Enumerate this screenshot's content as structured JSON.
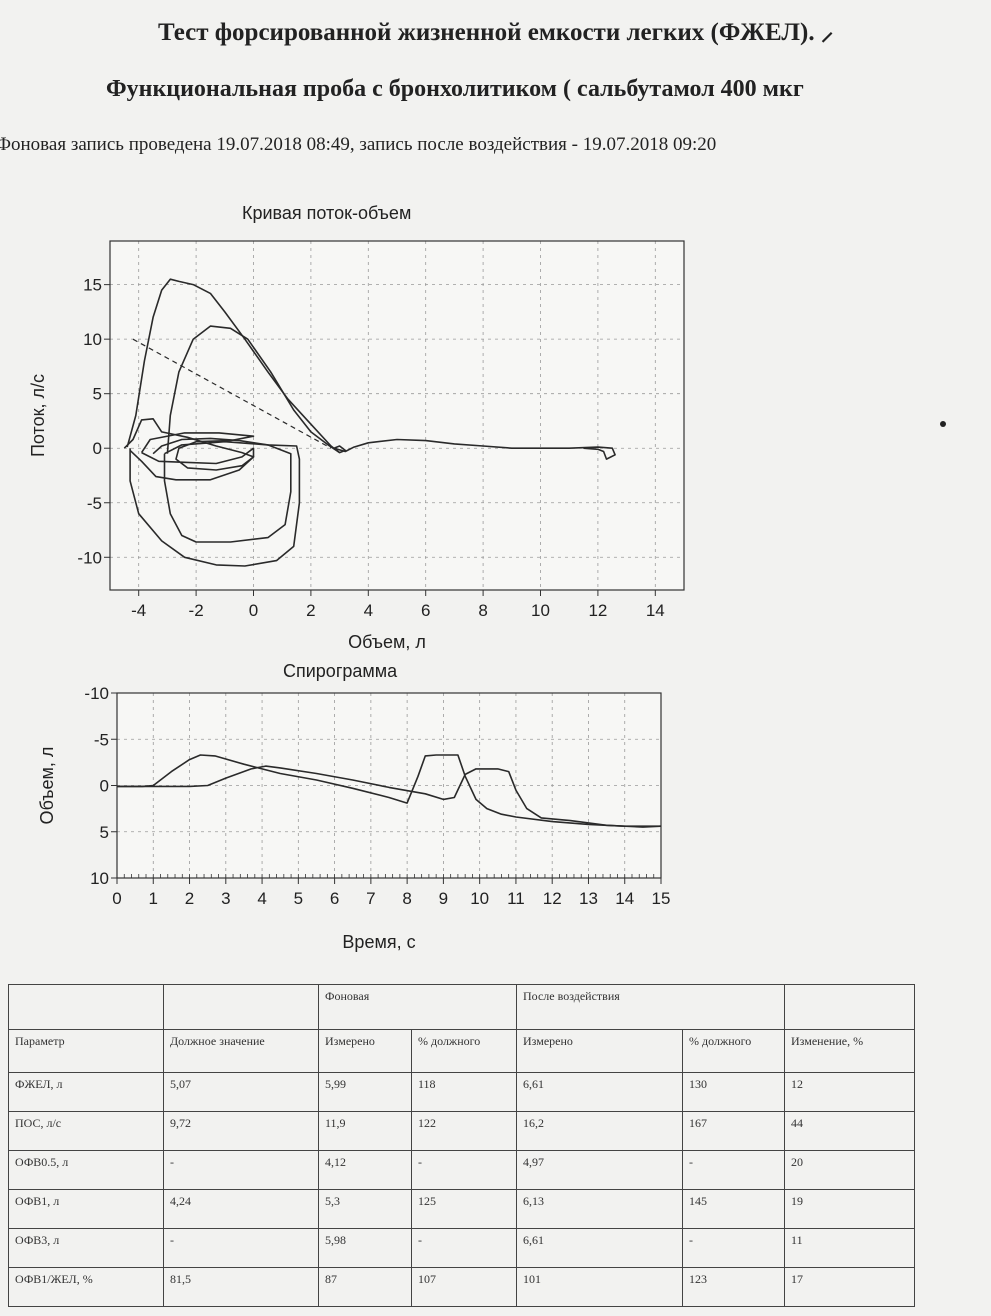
{
  "header": {
    "title": "Тест форсированной жизненной емкости легких (ФЖЕЛ). ⸝",
    "subtitle": "Функциональная проба с бронхолитиком ( сальбутамол 400 мкг",
    "record_note": "Фоновая запись проведена 19.07.2018 08:49, запись после воздействия - 19.07.2018 09:20"
  },
  "chart_data": [
    {
      "type": "line",
      "title": "Кривая поток-объем",
      "xlabel": "Объем, л",
      "ylabel": "Поток, л/с",
      "xlim": [
        -5,
        15
      ],
      "ylim": [
        -13,
        19
      ],
      "x_ticks": [
        "-4",
        "-2",
        "0",
        "2",
        "4",
        "6",
        "8",
        "10",
        "12",
        "14"
      ],
      "y_ticks": [
        "15",
        "10",
        "5",
        "0",
        "-5",
        "-10"
      ],
      "grid": true,
      "series": [
        {
          "points": [
            [
              -4.4,
              0.1
            ],
            [
              -4.1,
              3
            ],
            [
              -3.8,
              8
            ],
            [
              -3.5,
              12
            ],
            [
              -3.2,
              14.5
            ],
            [
              -2.9,
              15.5
            ],
            [
              -2.6,
              15.3
            ],
            [
              -2.1,
              15
            ],
            [
              -1.5,
              14.2
            ],
            [
              -1,
              12.5
            ],
            [
              -0.3,
              10
            ],
            [
              0.5,
              7
            ],
            [
              1.2,
              4.5
            ],
            [
              2,
              2.2
            ],
            [
              2.7,
              0.2
            ],
            [
              3,
              -0.4
            ],
            [
              3.2,
              -0.2
            ],
            [
              3,
              0.2
            ],
            [
              2.8,
              0
            ],
            [
              3.2,
              -0.3
            ],
            [
              3.5,
              0.1
            ],
            [
              4,
              0.5
            ],
            [
              5,
              0.8
            ],
            [
              6,
              0.7
            ],
            [
              7,
              0.4
            ],
            [
              8,
              0.2
            ],
            [
              9,
              0
            ],
            [
              10,
              0
            ],
            [
              11,
              0
            ],
            [
              12,
              0.1
            ],
            [
              12.5,
              0
            ],
            [
              12.6,
              -0.6
            ],
            [
              12.3,
              -1
            ],
            [
              12.2,
              -0.3
            ],
            [
              12,
              -0.1
            ],
            [
              11.5,
              0
            ]
          ]
        },
        {
          "points": [
            [
              -4.3,
              0
            ],
            [
              -4.3,
              -3
            ],
            [
              -4,
              -6
            ],
            [
              -3.2,
              -8.5
            ],
            [
              -2.4,
              -10
            ],
            [
              -1.3,
              -10.7
            ],
            [
              -0.3,
              -10.8
            ],
            [
              0.8,
              -10.3
            ],
            [
              1.4,
              -9
            ],
            [
              1.6,
              -5
            ],
            [
              1.6,
              -1
            ],
            [
              1.5,
              0.2
            ],
            [
              0.5,
              0.3
            ],
            [
              -0.5,
              0.7
            ],
            [
              -1.5,
              0.9
            ],
            [
              -2.5,
              0.8
            ],
            [
              -3.2,
              0.2
            ],
            [
              -3.5,
              -0.5
            ]
          ]
        },
        {
          "points": [
            [
              -3,
              -0.5
            ],
            [
              -2.9,
              3
            ],
            [
              -2.6,
              7
            ],
            [
              -2.1,
              10
            ],
            [
              -1.5,
              11.2
            ],
            [
              -0.8,
              11
            ],
            [
              -0.2,
              10
            ],
            [
              0.6,
              7
            ],
            [
              1.4,
              3.5
            ],
            [
              2,
              1.5
            ],
            [
              2.6,
              0.3
            ],
            [
              3,
              -0.4
            ]
          ]
        },
        {
          "points": [
            [
              -3.1,
              -0.5
            ],
            [
              -3.1,
              -3
            ],
            [
              -2.9,
              -6
            ],
            [
              -2.5,
              -8
            ],
            [
              -2,
              -8.6
            ],
            [
              -0.8,
              -8.6
            ],
            [
              0.5,
              -8.2
            ],
            [
              1.1,
              -7
            ],
            [
              1.3,
              -4
            ],
            [
              1.3,
              -0.5
            ],
            [
              0.5,
              0.3
            ],
            [
              -1,
              0.6
            ],
            [
              -2.5,
              0.3
            ],
            [
              -3.1,
              -0.5
            ]
          ]
        },
        {
          "points": [
            [
              -3.9,
              -0.4
            ],
            [
              -3.6,
              0.8
            ],
            [
              -2.4,
              1.4
            ],
            [
              -1.2,
              1.4
            ],
            [
              0,
              1.1
            ],
            [
              -0.8,
              0.7
            ],
            [
              -2,
              0.6
            ],
            [
              -2.6,
              0
            ],
            [
              -2.7,
              -1
            ],
            [
              -2.3,
              -1.8
            ],
            [
              -1.3,
              -2
            ],
            [
              -0.4,
              -1.6
            ],
            [
              0,
              -0.8
            ],
            [
              0,
              0
            ],
            [
              -0.4,
              -0.8
            ],
            [
              -1.3,
              -1.4
            ],
            [
              -2.3,
              -1.3
            ],
            [
              -3.3,
              -1.2
            ],
            [
              -3.9,
              -0.4
            ]
          ]
        },
        {
          "points": [
            [
              -4.5,
              0
            ],
            [
              -4.2,
              0.8
            ],
            [
              -3.9,
              2.6
            ],
            [
              -3.5,
              2.7
            ],
            [
              -3.2,
              1.5
            ],
            [
              -2.3,
              1
            ],
            [
              -1.3,
              0.2
            ],
            [
              -0.4,
              -0.4
            ],
            [
              0,
              -0.8
            ],
            [
              -0.5,
              -2
            ],
            [
              -1.5,
              -2.9
            ],
            [
              -2.7,
              -2.9
            ],
            [
              -3.4,
              -2.6
            ],
            [
              -3.9,
              -1.2
            ],
            [
              -4.3,
              -0.2
            ]
          ]
        },
        {
          "dashed": true,
          "points": [
            [
              -4.2,
              10
            ],
            [
              2.7,
              0
            ]
          ]
        }
      ]
    },
    {
      "type": "line",
      "title": "Спирограмма",
      "xlabel": "Время, с",
      "ylabel": "Объем, л",
      "xlim": [
        0,
        15
      ],
      "ylim": [
        -10,
        10
      ],
      "y_inverted": true,
      "x_ticks": [
        "0",
        "1",
        "2",
        "3",
        "4",
        "5",
        "6",
        "7",
        "8",
        "9",
        "10",
        "11",
        "12",
        "13",
        "14",
        "15"
      ],
      "y_ticks": [
        "-10",
        "-5",
        "0",
        "5",
        "10"
      ],
      "grid": true,
      "series": [
        {
          "points": [
            [
              0,
              0.1
            ],
            [
              0.7,
              0.1
            ],
            [
              1,
              0
            ],
            [
              1.5,
              -1.5
            ],
            [
              2,
              -2.8
            ],
            [
              2.3,
              -3.3
            ],
            [
              2.7,
              -3.2
            ],
            [
              3.5,
              -2.3
            ],
            [
              4.5,
              -1.3
            ],
            [
              5.5,
              -0.6
            ],
            [
              6.5,
              0.3
            ],
            [
              7.5,
              1.3
            ],
            [
              8,
              1.9
            ],
            [
              8.3,
              -1
            ],
            [
              8.5,
              -3.2
            ],
            [
              8.8,
              -3.3
            ],
            [
              9.4,
              -3.3
            ],
            [
              9.6,
              -1
            ],
            [
              9.9,
              1.5
            ],
            [
              10.2,
              2.5
            ],
            [
              10.6,
              3.1
            ],
            [
              11,
              3.4
            ],
            [
              12,
              3.9
            ],
            [
              13,
              4.2
            ],
            [
              14,
              4.4
            ],
            [
              15,
              4.4
            ]
          ]
        },
        {
          "points": [
            [
              0,
              0.1
            ],
            [
              2,
              0.1
            ],
            [
              2.5,
              0
            ],
            [
              3,
              -0.8
            ],
            [
              3.7,
              -1.8
            ],
            [
              4.1,
              -2.1
            ],
            [
              4.5,
              -1.9
            ],
            [
              5.5,
              -1.3
            ],
            [
              6.5,
              -0.6
            ],
            [
              7.5,
              0.2
            ],
            [
              8.5,
              0.9
            ],
            [
              9,
              1.5
            ],
            [
              9.3,
              1.3
            ],
            [
              9.6,
              -1.2
            ],
            [
              9.9,
              -1.8
            ],
            [
              10.5,
              -1.8
            ],
            [
              10.8,
              -1.5
            ],
            [
              11,
              0.5
            ],
            [
              11.3,
              2.5
            ],
            [
              11.7,
              3.5
            ],
            [
              12.5,
              3.8
            ],
            [
              13.5,
              4.3
            ],
            [
              14.5,
              4.5
            ],
            [
              15,
              4.4
            ]
          ]
        }
      ]
    }
  ],
  "results_table": {
    "group_headers": {
      "background": "Фоновая",
      "after": "После воздействия"
    },
    "columns": [
      "Параметр",
      "Должное значение",
      "Измерено",
      "% должного",
      "Измерено",
      "% должного",
      "Изменение, %"
    ],
    "rows": [
      [
        "ФЖЕЛ, л",
        "5,07",
        "5,99",
        "118",
        "6,61",
        "130",
        "12"
      ],
      [
        "ПОС, л/с",
        "9,72",
        "11,9",
        "122",
        "16,2",
        "167",
        "44"
      ],
      [
        "ОФВ0.5, л",
        "-",
        "4,12",
        "-",
        "4,97",
        "-",
        "20"
      ],
      [
        "ОФВ1, л",
        "4,24",
        "5,3",
        "125",
        "6,13",
        "145",
        "19"
      ],
      [
        "ОФВ3, л",
        "-",
        "5,98",
        "-",
        "6,61",
        "-",
        "11"
      ],
      [
        "ОФВ1/ЖЕЛ, %",
        "81,5",
        "87",
        "107",
        "101",
        "123",
        "17"
      ]
    ]
  }
}
